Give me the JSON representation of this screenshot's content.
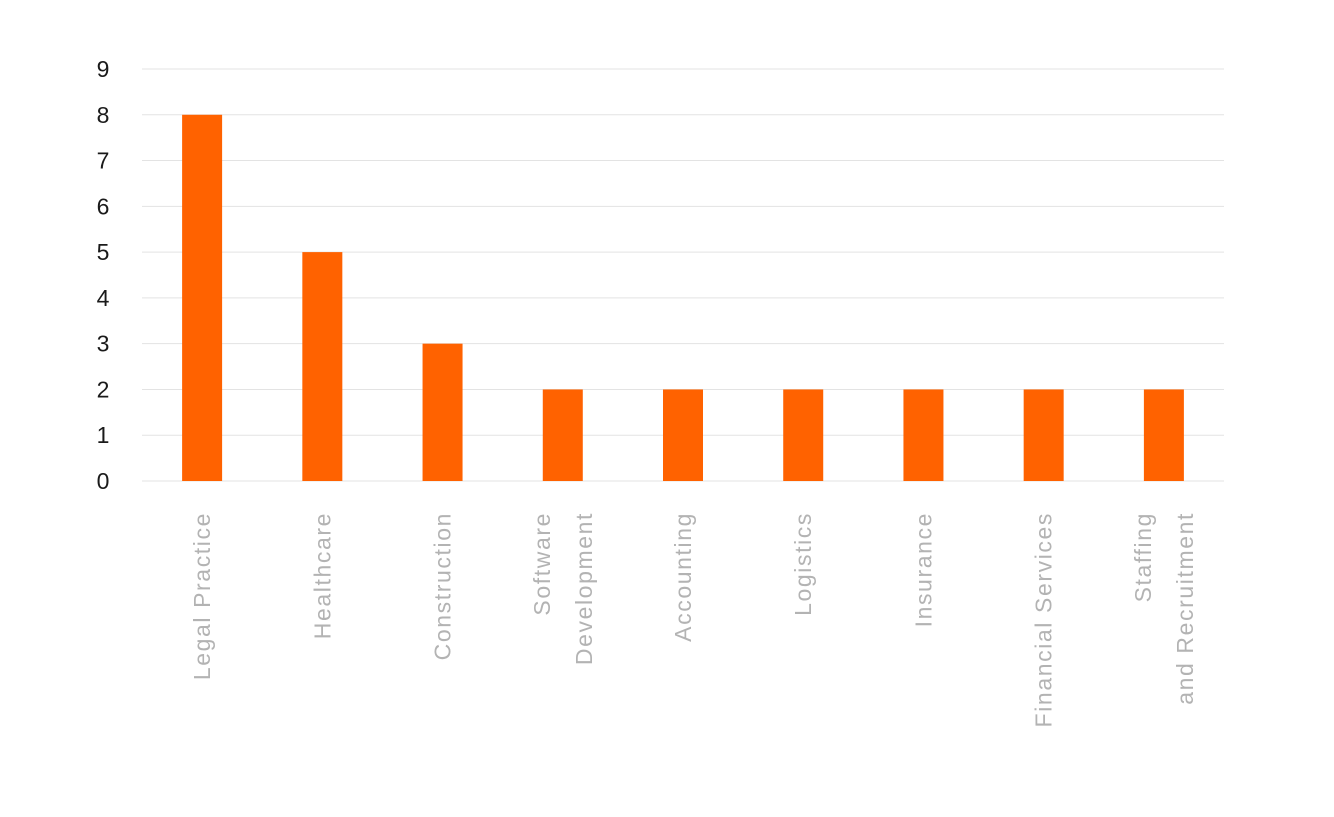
{
  "chart_data": {
    "type": "bar",
    "title": "",
    "xlabel": "",
    "ylabel": "",
    "categories": [
      "Legal Practice",
      "Healthcare",
      "Construction",
      "Software Development",
      "Accounting",
      "Logistics",
      "Insurance",
      "Financial Services",
      "Staffing and Recruitment"
    ],
    "values": [
      8,
      5,
      3,
      2,
      2,
      2,
      2,
      2,
      2
    ],
    "ylim": [
      0,
      9
    ],
    "yticks": [
      0,
      1,
      2,
      3,
      4,
      5,
      6,
      7,
      8,
      9
    ],
    "grid": true,
    "legend": "none",
    "colors": {
      "bar": "#ff6200",
      "grid": "#e3e3e3",
      "ytick": "#1a1a1a",
      "xtick": "#b3b3b3"
    }
  }
}
